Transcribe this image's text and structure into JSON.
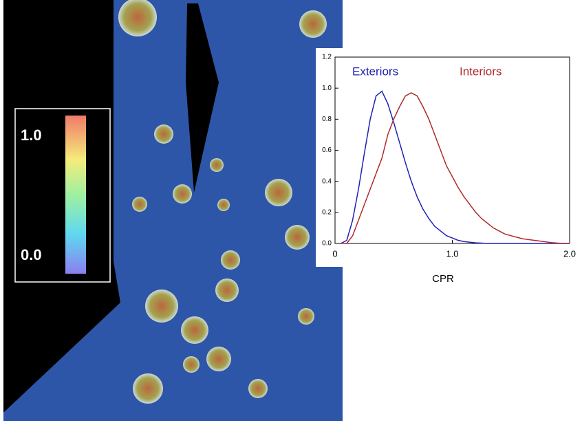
{
  "chart_data": {
    "type": "line",
    "xlabel": "CPR",
    "x": [
      0.05,
      0.1,
      0.15,
      0.2,
      0.25,
      0.3,
      0.35,
      0.4,
      0.45,
      0.5,
      0.55,
      0.6,
      0.65,
      0.7,
      0.75,
      0.8,
      0.85,
      0.9,
      0.95,
      1.0,
      1.05,
      1.1,
      1.15,
      1.2,
      1.25,
      1.3,
      1.35,
      1.4,
      1.45,
      1.5,
      1.55,
      1.6,
      1.65,
      1.7,
      1.75,
      1.8,
      1.85,
      1.9,
      1.95,
      2.0
    ],
    "series": [
      {
        "name": "Exteriors",
        "color": "#1f1fb4",
        "values": [
          0,
          0.02,
          0.15,
          0.35,
          0.58,
          0.8,
          0.95,
          0.98,
          0.9,
          0.78,
          0.65,
          0.52,
          0.4,
          0.3,
          0.22,
          0.16,
          0.11,
          0.08,
          0.05,
          0.035,
          0.02,
          0.012,
          0.008,
          0.004,
          0.002,
          0,
          0,
          0,
          0,
          0,
          0,
          0,
          0,
          0,
          0,
          0,
          0,
          0,
          0,
          0
        ]
      },
      {
        "name": "Interiors",
        "color": "#b02a2a",
        "values": [
          0,
          0,
          0.05,
          0.15,
          0.25,
          0.35,
          0.45,
          0.55,
          0.7,
          0.8,
          0.88,
          0.95,
          0.97,
          0.95,
          0.88,
          0.8,
          0.7,
          0.6,
          0.5,
          0.43,
          0.36,
          0.3,
          0.25,
          0.2,
          0.16,
          0.13,
          0.1,
          0.08,
          0.06,
          0.05,
          0.04,
          0.03,
          0.025,
          0.02,
          0.015,
          0.01,
          0.005,
          0.002,
          0,
          0
        ]
      }
    ],
    "xlim": [
      0,
      2
    ],
    "xticks": [
      0,
      {
        "value": 1,
        "label": "1.0"
      },
      {
        "value": 2,
        "label": "2.0"
      }
    ],
    "ylim": [
      0,
      1.2
    ],
    "yticks": [
      {
        "value": 0,
        "label": "0.0"
      },
      0.2,
      0.4,
      0.6,
      0.8,
      {
        "value": 1,
        "label": "1.0"
      },
      1.2
    ],
    "colorbar": {
      "labels": [
        "1.0",
        "0.0"
      ]
    }
  }
}
